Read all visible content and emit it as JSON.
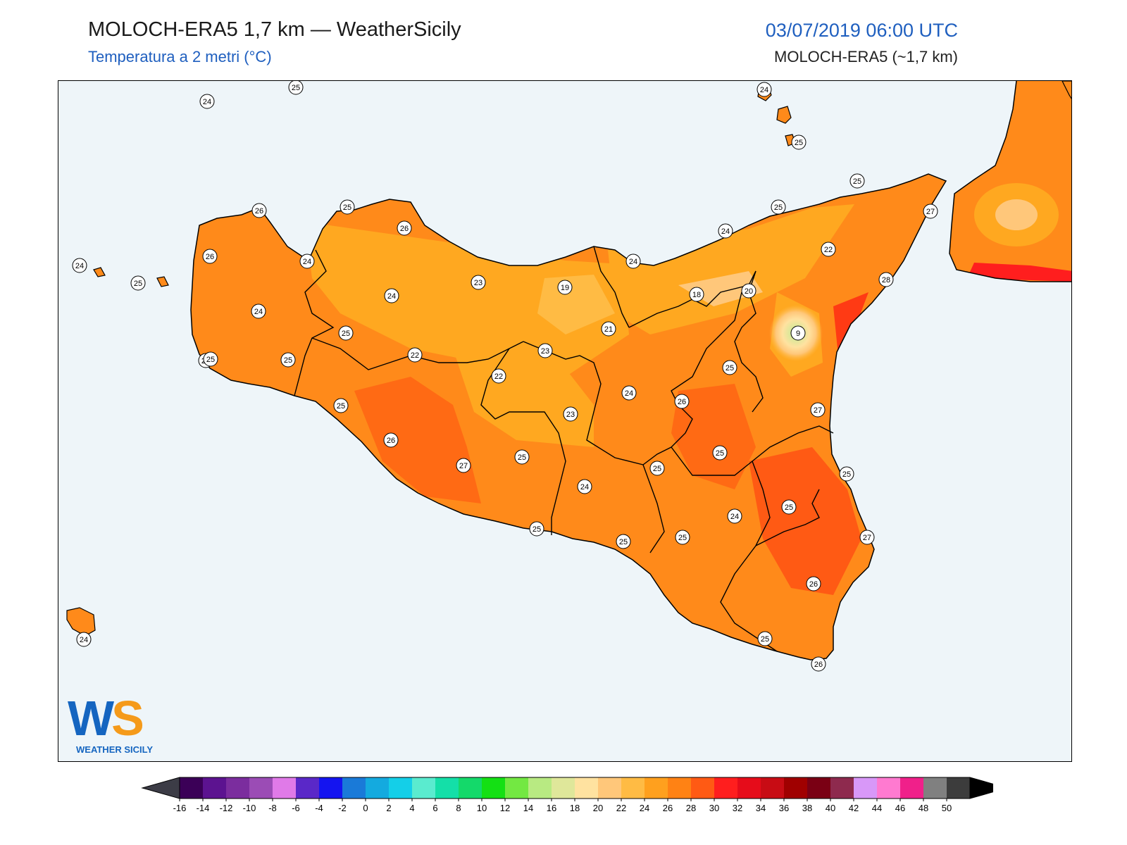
{
  "header": {
    "title": "MOLOCH-ERA5 1,7 km — WeatherSicily",
    "subtitle": "Temperatura a 2 metri (°C)",
    "datetime": "03/07/2019 06:00 UTC",
    "model": "MOLOCH-ERA5 (~1,7 km)"
  },
  "logo": {
    "letters_w": "W",
    "letters_s": "S",
    "name": "WEATHER SICILY"
  },
  "colorbar": {
    "ticks": [
      "-16",
      "-14",
      "-12",
      "-10",
      "-8",
      "-6",
      "-4",
      "-2",
      "0",
      "2",
      "4",
      "6",
      "8",
      "10",
      "12",
      "14",
      "16",
      "18",
      "20",
      "22",
      "24",
      "26",
      "28",
      "30",
      "32",
      "34",
      "36",
      "38",
      "40",
      "42",
      "44",
      "46",
      "48",
      "50"
    ],
    "colors": [
      "#3b0057",
      "#5c1390",
      "#7b2d9e",
      "#9b4cb5",
      "#e07ae8",
      "#5a28c8",
      "#1414f0",
      "#1a7ad8",
      "#14aadf",
      "#14cfe8",
      "#5aebcf",
      "#14dfa8",
      "#14d96a",
      "#14e014",
      "#73e842",
      "#b8ea82",
      "#dfe79a",
      "#ffe2a0",
      "#ffc77a",
      "#ffbb44",
      "#ffa01e",
      "#ff8214",
      "#ff5a14",
      "#ff1e1e",
      "#e60c1a",
      "#c80c14",
      "#a00000",
      "#7a0014",
      "#8e2a4e",
      "#d898f8",
      "#ff7ad0",
      "#f0208a",
      "#808080",
      "#3c3c3c"
    ]
  },
  "stations": [
    {
      "v": "24"
    },
    {
      "v": "25"
    },
    {
      "v": "24"
    },
    {
      "v": "25"
    },
    {
      "v": "26"
    },
    {
      "v": "25"
    },
    {
      "v": "26"
    },
    {
      "v": "24"
    },
    {
      "v": "24"
    },
    {
      "v": "25"
    },
    {
      "v": "26"
    },
    {
      "v": "24"
    },
    {
      "v": "23"
    },
    {
      "v": "19"
    },
    {
      "v": "24"
    },
    {
      "v": "18"
    },
    {
      "v": "20"
    },
    {
      "v": "24"
    },
    {
      "v": "25"
    },
    {
      "v": "22"
    },
    {
      "v": "25"
    },
    {
      "v": "27"
    },
    {
      "v": "28"
    },
    {
      "v": "24"
    },
    {
      "v": "25"
    },
    {
      "v": "22"
    },
    {
      "v": "23"
    },
    {
      "v": "21"
    },
    {
      "v": "9"
    },
    {
      "v": "25"
    },
    {
      "v": "25"
    },
    {
      "v": "25"
    },
    {
      "v": "22"
    },
    {
      "v": "23"
    },
    {
      "v": "24"
    },
    {
      "v": "26"
    },
    {
      "v": "27"
    },
    {
      "v": "26"
    },
    {
      "v": "25"
    },
    {
      "v": "27"
    },
    {
      "v": "25"
    },
    {
      "v": "25"
    },
    {
      "v": "24"
    },
    {
      "v": "25"
    },
    {
      "v": "25"
    },
    {
      "v": "24"
    },
    {
      "v": "25"
    },
    {
      "v": "25"
    },
    {
      "v": "27"
    },
    {
      "v": "25"
    },
    {
      "v": "25"
    },
    {
      "v": "25"
    },
    {
      "v": "26"
    },
    {
      "v": "26"
    },
    {
      "v": "25"
    },
    {
      "v": "24"
    }
  ]
}
